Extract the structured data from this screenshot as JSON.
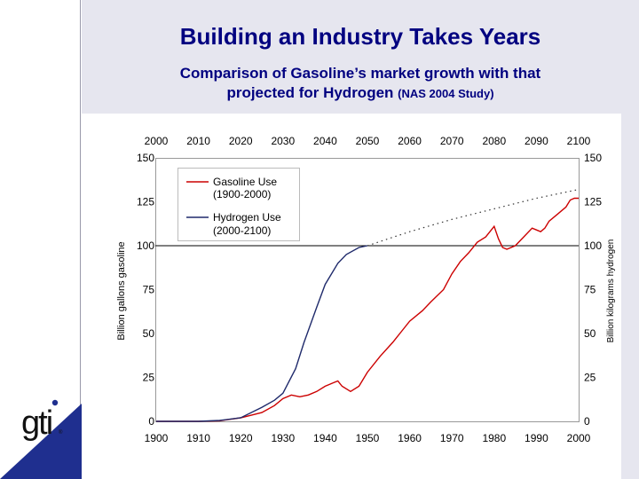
{
  "slide": {
    "title": "Building an Industry Takes Years",
    "subtitle_line1": "Comparison of Gasoline’s market growth with that",
    "subtitle_line2": "projected for Hydrogen",
    "subtitle_note": "(NAS 2004 Study)"
  },
  "logo": {
    "text": "gti",
    "mark": "®"
  },
  "colors": {
    "title": "#000080",
    "gasoline": "#cc0000",
    "hydrogen": "#1f2a6b",
    "accent": "#1f2f8f",
    "band": "#e6e6ef"
  },
  "chart_data": {
    "type": "line",
    "x_bottom": {
      "min": 1900,
      "max": 2000,
      "ticks": [
        "1900",
        "1910",
        "1920",
        "1930",
        "1940",
        "1950",
        "1960",
        "1970",
        "1980",
        "1990",
        "2000"
      ]
    },
    "x_top": {
      "min": 2000,
      "max": 2100,
      "ticks": [
        "2000",
        "2010",
        "2020",
        "2030",
        "2040",
        "2050",
        "2060",
        "2070",
        "2080",
        "2090",
        "2100"
      ]
    },
    "y_left": {
      "label": "Billion gallons gasoline",
      "min": 0,
      "max": 150,
      "ticks": [
        "0",
        "25",
        "50",
        "75",
        "100",
        "125",
        "150"
      ]
    },
    "y_right": {
      "label": "Billion kilograms hydrogen",
      "min": 0,
      "max": 150,
      "ticks": [
        "0",
        "25",
        "50",
        "75",
        "100",
        "125",
        "150"
      ]
    },
    "reference_line": 100,
    "legend": [
      {
        "line1": "Gasoline Use",
        "line2": "(1900-2000)",
        "series": "gasoline"
      },
      {
        "line1": "Hydrogen Use",
        "line2": "(2000-2100)",
        "series": "hydrogen"
      }
    ],
    "series": [
      {
        "name": "gasoline",
        "axis": "bottom",
        "x": [
          1900,
          1910,
          1915,
          1920,
          1925,
          1928,
          1930,
          1932,
          1934,
          1936,
          1938,
          1940,
          1941,
          1942,
          1943,
          1944,
          1946,
          1948,
          1950,
          1953,
          1956,
          1958,
          1960,
          1963,
          1965,
          1968,
          1970,
          1972,
          1974,
          1976,
          1978,
          1979,
          1980,
          1981,
          1982,
          1983,
          1985,
          1987,
          1989,
          1990,
          1991,
          1992,
          1993,
          1995,
          1997,
          1998,
          1999,
          2000
        ],
        "y": [
          0,
          0,
          0.3,
          2,
          5,
          9,
          13,
          15,
          14,
          15,
          17,
          20,
          21,
          22,
          23,
          20,
          17,
          20,
          28,
          37,
          45,
          51,
          57,
          63,
          68,
          75,
          84,
          91,
          96,
          102,
          105,
          108,
          111,
          104,
          99,
          98,
          100,
          105,
          110,
          109,
          108,
          110,
          114,
          118,
          122,
          126,
          127,
          127
        ]
      },
      {
        "name": "hydrogen",
        "axis": "top",
        "x": [
          2000,
          2010,
          2015,
          2020,
          2025,
          2028,
          2030,
          2033,
          2035,
          2038,
          2040,
          2043,
          2045,
          2048,
          2050
        ],
        "y": [
          0,
          0,
          0.5,
          2,
          8,
          12,
          16,
          30,
          45,
          65,
          78,
          90,
          95,
          99,
          100
        ]
      },
      {
        "name": "hydrogen_projection",
        "axis": "top",
        "style": "dotted",
        "x": [
          2050,
          2060,
          2070,
          2080,
          2090,
          2100
        ],
        "y": [
          100,
          108,
          115,
          121,
          127,
          132
        ]
      }
    ]
  }
}
